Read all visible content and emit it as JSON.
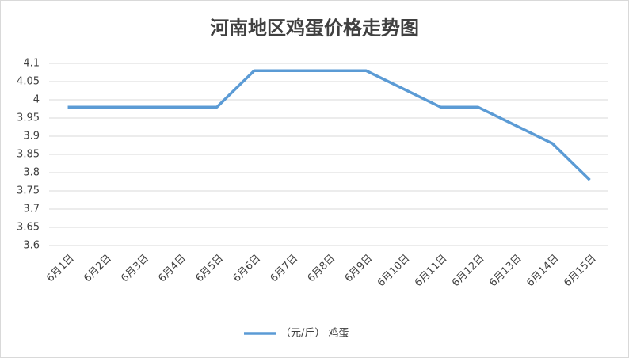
{
  "chart_data": {
    "type": "line",
    "title": "河南地区鸡蛋价格走势图",
    "categories": [
      "6月1日",
      "6月2日",
      "6月3日",
      "6月4日",
      "6月5日",
      "6月6日",
      "6月7日",
      "6月8日",
      "6月9日",
      "6月10日",
      "6月11日",
      "6月12日",
      "6月13日",
      "6月14日",
      "6月15日"
    ],
    "series": [
      {
        "name": "（元/斤） 鸡蛋",
        "color": "#5b9bd5",
        "values": [
          3.98,
          3.98,
          3.98,
          3.98,
          3.98,
          4.08,
          4.08,
          4.08,
          4.08,
          4.03,
          3.98,
          3.98,
          3.93,
          3.88,
          3.78
        ]
      }
    ],
    "ylim": [
      3.6,
      4.1
    ],
    "yticks": [
      3.6,
      3.65,
      3.7,
      3.75,
      3.8,
      3.85,
      3.9,
      3.95,
      4,
      4.05,
      4.1
    ],
    "grid": true,
    "legend": "bottom"
  }
}
